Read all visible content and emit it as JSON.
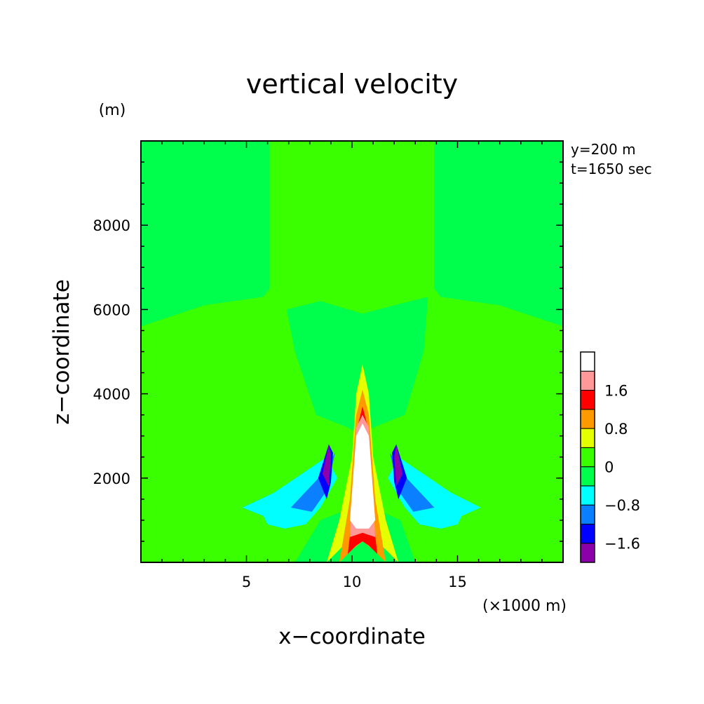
{
  "chart_data": {
    "type": "heatmap",
    "title": "vertical velocity",
    "xlabel": "x−coordinate",
    "ylabel": "z−coordinate",
    "x_unit": "(×1000 m)",
    "y_unit": "(m)",
    "xlim": [
      0,
      20
    ],
    "ylim": [
      0,
      10000
    ],
    "x_ticks": [
      5,
      10,
      15
    ],
    "y_ticks": [
      2000,
      4000,
      6000,
      8000
    ],
    "x_tick_labels": [
      "5",
      "10",
      "15"
    ],
    "y_tick_labels": [
      "2000",
      "4000",
      "6000",
      "8000"
    ],
    "info_lines": [
      "y=200 m",
      "t=1650 sec"
    ],
    "colorbar": {
      "levels": [
        -2.0,
        -1.6,
        -1.2,
        -0.8,
        -0.4,
        0,
        0.4,
        0.8,
        1.2,
        1.6,
        2.0
      ],
      "colors": [
        "#8b00a8",
        "#0000ff",
        "#0a7fff",
        "#00ffff",
        "#00ff4d",
        "#3aff00",
        "#e6ff00",
        "#ff9900",
        "#ff0000",
        "#ff9999",
        "#ffffff"
      ],
      "tick_labels": [
        "1.6",
        "0.8",
        "0",
        "−0.8",
        "−1.6"
      ],
      "tick_values": [
        1.6,
        0.8,
        0,
        -0.8,
        -1.6
      ]
    },
    "regions": [
      {
        "band": 5,
        "x": [
          6.0,
          7.0,
          10.5,
          14.0,
          15.0,
          18.0,
          18.0,
          3.0,
          3.0
        ],
        "z": [
          10000,
          6500,
          6000,
          6500,
          10000,
          10000,
          0,
          0,
          10000
        ]
      },
      {
        "band": 4,
        "x": [
          0,
          6.1,
          6.1,
          5.8,
          3.0,
          0
        ],
        "z": [
          10000,
          10000,
          6500,
          6300,
          6100,
          5600
        ]
      },
      {
        "band": 4,
        "x": [
          20,
          13.9,
          13.9,
          14.2,
          17.0,
          20
        ],
        "z": [
          10000,
          10000,
          6500,
          6300,
          6100,
          5600
        ]
      },
      {
        "band": 4,
        "x": [
          6.9,
          8.5,
          10.5,
          12.0,
          13.6,
          13.4,
          12.5,
          11.0,
          10.5,
          9.8,
          8.3,
          7.3
        ],
        "z": [
          6000,
          6200,
          5900,
          6100,
          6300,
          5000,
          3500,
          3200,
          3000,
          3200,
          3500,
          5000
        ]
      },
      {
        "band": 4,
        "x": [
          7.3,
          8.5,
          10.5,
          12.3,
          13.0,
          12.0,
          10.5,
          9.0
        ],
        "z": [
          0,
          1000,
          1400,
          1000,
          0,
          0,
          0,
          0
        ]
      },
      {
        "band": 3,
        "x": [
          4.8,
          6.3,
          8.8,
          9.3,
          8.5,
          7.8,
          6.8,
          6.0,
          5.8
        ],
        "z": [
          1300,
          1650,
          2500,
          2000,
          1300,
          900,
          800,
          900,
          1100
        ]
      },
      {
        "band": 3,
        "x": [
          16.1,
          14.7,
          12.2,
          11.7,
          12.5,
          13.2,
          14.2,
          15.0,
          15.2
        ],
        "z": [
          1300,
          1650,
          2500,
          2000,
          1300,
          900,
          800,
          900,
          1100
        ]
      },
      {
        "band": 2,
        "x": [
          7.1,
          8.6,
          9.2,
          8.8,
          8.1
        ],
        "z": [
          1300,
          2100,
          2600,
          1700,
          1200
        ]
      },
      {
        "band": 2,
        "x": [
          13.9,
          12.4,
          11.8,
          12.2,
          12.9
        ],
        "z": [
          1300,
          2100,
          2600,
          1700,
          1200
        ]
      },
      {
        "band": 1,
        "x": [
          8.4,
          8.9,
          9.1,
          9.0,
          8.8
        ],
        "z": [
          2000,
          2800,
          2600,
          1900,
          1500
        ]
      },
      {
        "band": 1,
        "x": [
          12.6,
          12.1,
          11.9,
          12.0,
          12.2
        ],
        "z": [
          2000,
          2800,
          2600,
          1900,
          1500
        ]
      },
      {
        "band": 0,
        "x": [
          8.6,
          8.9,
          9.0,
          8.9
        ],
        "z": [
          2100,
          2800,
          2500,
          1800
        ]
      },
      {
        "band": 0,
        "x": [
          12.4,
          12.1,
          12.0,
          12.1
        ],
        "z": [
          2100,
          2800,
          2500,
          1800
        ]
      },
      {
        "band": 6,
        "x": [
          8.8,
          9.6,
          10.5,
          11.4,
          12.2,
          11.6,
          11.0,
          10.8,
          10.5,
          10.2,
          10.0,
          9.4
        ],
        "z": [
          0,
          400,
          500,
          400,
          0,
          1000,
          2500,
          4000,
          4700,
          4000,
          2500,
          1000
        ]
      },
      {
        "band": 7,
        "x": [
          9.4,
          10.0,
          10.5,
          11.0,
          11.6,
          11.1,
          10.8,
          10.5,
          10.2,
          9.9
        ],
        "z": [
          0,
          300,
          500,
          300,
          0,
          1500,
          3500,
          4100,
          3500,
          1500
        ]
      },
      {
        "band": 8,
        "x": [
          9.8,
          10.2,
          10.5,
          10.8,
          11.2,
          10.9,
          10.7,
          10.5,
          10.3,
          10.1
        ],
        "z": [
          200,
          400,
          500,
          400,
          200,
          1500,
          3300,
          3700,
          3300,
          1500
        ]
      },
      {
        "band": 9,
        "x": [
          9.9,
          10.5,
          11.1,
          10.8,
          10.5,
          10.2
        ],
        "z": [
          600,
          700,
          600,
          3200,
          3500,
          3200
        ]
      },
      {
        "band": 10,
        "x": [
          9.9,
          10.2,
          10.5,
          10.8,
          11.1,
          10.8,
          10.5,
          10.2
        ],
        "z": [
          1000,
          800,
          800,
          800,
          1000,
          3000,
          3300,
          3000
        ]
      }
    ]
  }
}
